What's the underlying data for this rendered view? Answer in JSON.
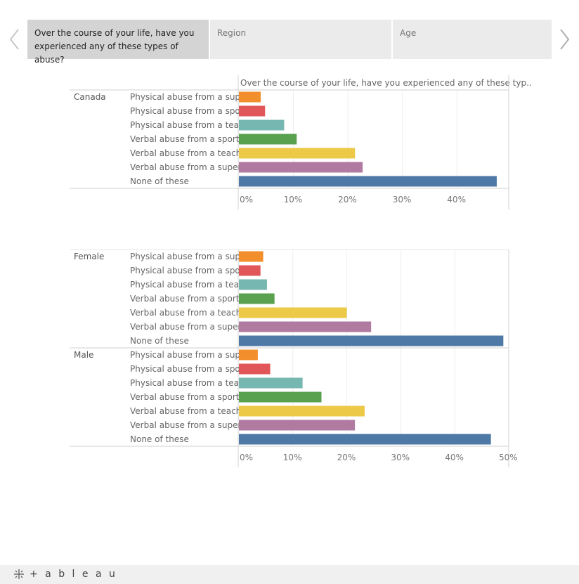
{
  "tabs": [
    {
      "label": "Over the course of your life, have you experienced any of these types of abuse?",
      "active": true
    },
    {
      "label": "Region",
      "active": false
    },
    {
      "label": "Age",
      "active": false
    }
  ],
  "nav": {
    "prev_icon": "chevron-left-icon",
    "next_icon": "chevron-right-icon"
  },
  "footer": {
    "logo_text": "+ a b l e a u",
    "logo_icon": "tableau-logo-icon"
  },
  "categories": [
    "Physical abuse from a sup..",
    "Physical abuse from a spo..",
    "Physical abuse from a tea..",
    "Verbal abuse from a sport..",
    "Verbal abuse from a teach..",
    "Verbal abuse from a super..",
    "None of these"
  ],
  "colors": [
    "#f28e2b",
    "#e15759",
    "#76b7b2",
    "#59a14f",
    "#edc948",
    "#b07aa1",
    "#4e79a7"
  ],
  "chart_data": [
    {
      "type": "bar",
      "orientation": "horizontal",
      "header": "Over the course of your life, have you experienced any of these typ..",
      "xlim": [
        0,
        0.495
      ],
      "ticks": [
        "0%",
        "10%",
        "20%",
        "30%",
        "40%"
      ],
      "tick_values": [
        0,
        0.1,
        0.2,
        0.3,
        0.4
      ],
      "groups": [
        {
          "label": "Canada",
          "values": [
            0.04,
            0.048,
            0.083,
            0.106,
            0.213,
            0.227,
            0.473
          ]
        }
      ]
    },
    {
      "type": "bar",
      "orientation": "horizontal",
      "header": "",
      "xlim": [
        0,
        0.5
      ],
      "ticks": [
        "0%",
        "10%",
        "20%",
        "30%",
        "40%",
        "50%"
      ],
      "tick_values": [
        0,
        0.1,
        0.2,
        0.3,
        0.4,
        0.5
      ],
      "groups": [
        {
          "label": "Female",
          "values": [
            0.045,
            0.04,
            0.052,
            0.066,
            0.2,
            0.245,
            0.49
          ]
        },
        {
          "label": "Male",
          "values": [
            0.035,
            0.058,
            0.118,
            0.153,
            0.233,
            0.215,
            0.467
          ]
        }
      ]
    }
  ]
}
